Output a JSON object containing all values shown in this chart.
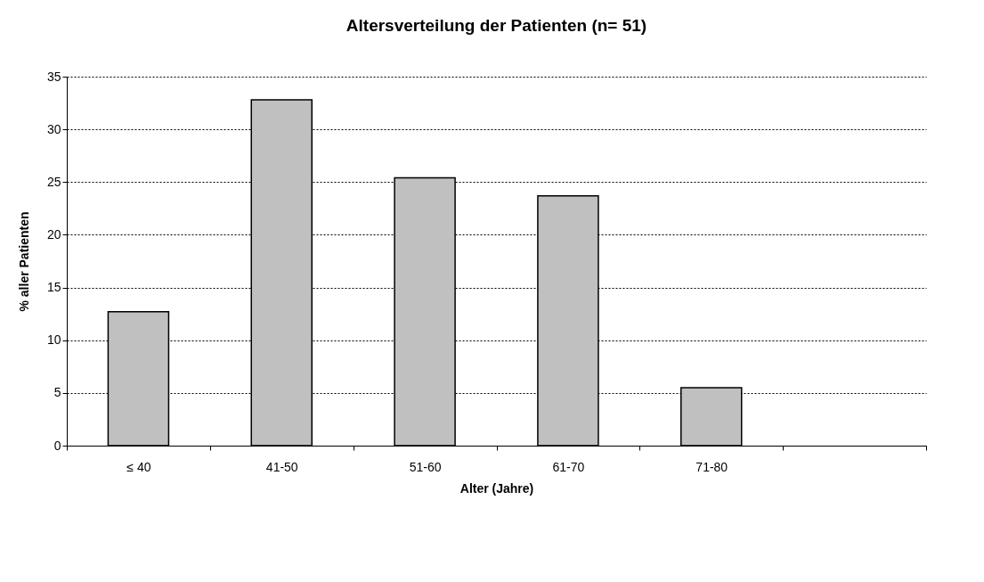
{
  "chart_data": {
    "type": "bar",
    "title": "Altersverteilung der Patienten (n= 51)",
    "xlabel": "Alter (Jahre)",
    "ylabel": "% aller Patienten",
    "categories": [
      "≤ 40",
      "41-50",
      "51-60",
      "61-70",
      "71-80",
      null
    ],
    "values": [
      12.7,
      32.8,
      25.4,
      23.7,
      5.5,
      null
    ],
    "color": "#c0c0c0",
    "ylim": [
      0,
      35
    ],
    "yticks": [
      0,
      5,
      10,
      15,
      20,
      25,
      30,
      35
    ],
    "grid": "y"
  }
}
